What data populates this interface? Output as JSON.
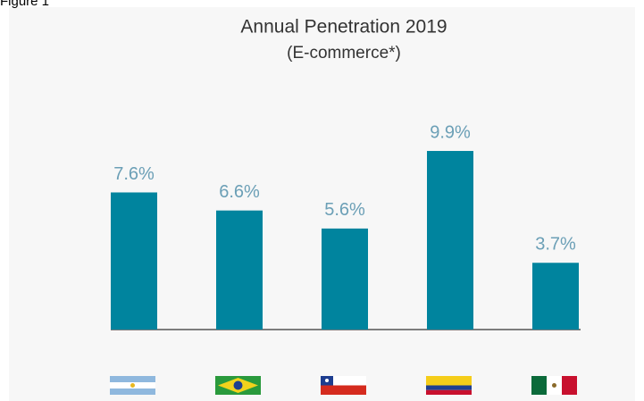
{
  "caption": "Figure 1",
  "chart_data": {
    "type": "bar",
    "title": "Annual Penetration 2019",
    "subtitle": "(E-commerce*)",
    "categories": [
      null,
      null,
      null,
      null,
      null
    ],
    "values": [
      7.6,
      6.6,
      5.6,
      9.9,
      3.7
    ],
    "value_labels": [
      "7.6%",
      "6.6%",
      "5.6%",
      "9.9%",
      "3.7%"
    ],
    "color": "#00849e"
  }
}
